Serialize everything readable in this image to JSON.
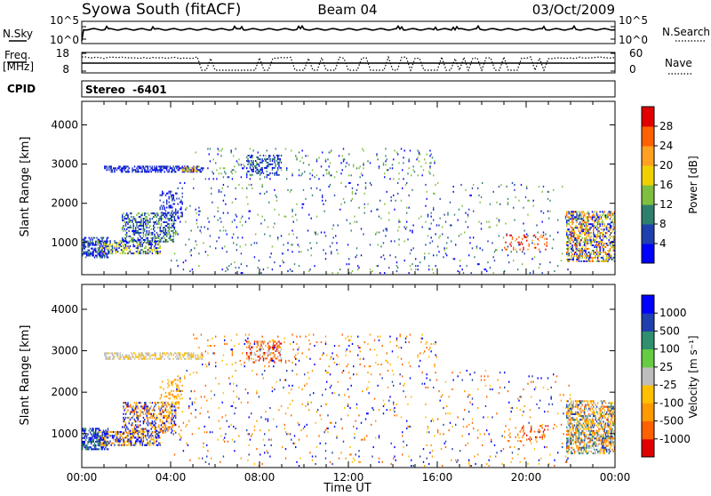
{
  "header": {
    "station": "Syowa South (fitACF)",
    "beam": "Beam 04",
    "date": "03/Oct/2009"
  },
  "top_panels": {
    "nsky_label": "N.Sky",
    "nsky_ticks": [
      "10^5",
      "10^0"
    ],
    "nsearch_label": "N.Search",
    "nsearch_ticks": [
      "10^5",
      "10^0"
    ],
    "freq_label": "Freq.",
    "freq_unit": "[MHz]",
    "freq_ticks": [
      "18",
      "8"
    ],
    "nave_label": "Nave",
    "nave_ticks": [
      "60",
      "0"
    ],
    "cpid_label": "CPID",
    "stereo_label": "Stereo  -6401"
  },
  "colors": {
    "line": "#000000",
    "background": "#ffffff"
  },
  "chart_data": [
    {
      "type": "heatmap",
      "title": "",
      "xlabel": "",
      "ylabel": "Slant Range [km]",
      "xlim": [
        0,
        24
      ],
      "ylim": [
        180,
        4600
      ],
      "yticks": [
        1000,
        2000,
        3000,
        4000
      ],
      "colorbar": {
        "label": "Power [dB]",
        "ticks": [
          "28",
          "24",
          "20",
          "16",
          "12",
          "8",
          "4"
        ],
        "colors": [
          "#0000ff",
          "#1f3faf",
          "#2f7f6f",
          "#7fbf3f",
          "#f0d000",
          "#ffa020",
          "#ff6000",
          "#e00000"
        ]
      },
      "bands": [
        {
          "t0": 1.0,
          "t1": 5.4,
          "r0": 2780,
          "r1": 2950,
          "density": 0.55,
          "levels": [
            0,
            1
          ]
        },
        {
          "t0": 4.5,
          "t1": 5.2,
          "r0": 2800,
          "r1": 2900,
          "density": 0.5,
          "levels": [
            3,
            4,
            5
          ]
        },
        {
          "t0": 7.4,
          "t1": 9.0,
          "r0": 2700,
          "r1": 3200,
          "density": 0.35,
          "levels": [
            0,
            1,
            2
          ]
        },
        {
          "t0": 5.0,
          "t1": 16.0,
          "r0": 2600,
          "r1": 3400,
          "density": 0.06,
          "levels": [
            2,
            3,
            0
          ]
        },
        {
          "t0": 0.0,
          "t1": 1.2,
          "r0": 600,
          "r1": 1100,
          "density": 0.6,
          "levels": [
            0,
            1,
            2
          ]
        },
        {
          "t0": 0.7,
          "t1": 3.5,
          "r0": 700,
          "r1": 1050,
          "density": 0.5,
          "levels": [
            0,
            1,
            3,
            4
          ]
        },
        {
          "t0": 1.8,
          "t1": 4.2,
          "r0": 1000,
          "r1": 1750,
          "density": 0.45,
          "levels": [
            0,
            1,
            2,
            3
          ]
        },
        {
          "t0": 3.5,
          "t1": 4.5,
          "r0": 1600,
          "r1": 2300,
          "density": 0.25,
          "levels": [
            0,
            1
          ]
        },
        {
          "t0": 4.0,
          "t1": 22.0,
          "r0": 200,
          "r1": 2500,
          "density": 0.035,
          "levels": [
            1,
            2,
            3,
            0
          ]
        },
        {
          "t0": 19.0,
          "t1": 21.0,
          "r0": 800,
          "r1": 1200,
          "density": 0.15,
          "levels": [
            5,
            6,
            7
          ]
        },
        {
          "t0": 21.8,
          "t1": 24.0,
          "r0": 500,
          "r1": 1800,
          "density": 0.55,
          "levels": [
            0,
            1,
            3,
            4,
            5,
            6
          ]
        }
      ]
    },
    {
      "type": "heatmap",
      "title": "",
      "xlabel": "Time UT",
      "ylabel": "Slant Range [km]",
      "xlim": [
        0,
        24
      ],
      "ylim": [
        180,
        4600
      ],
      "yticks": [
        1000,
        2000,
        3000,
        4000
      ],
      "xticks": [
        "00:00",
        "04:00",
        "08:00",
        "12:00",
        "16:00",
        "20:00",
        "00:00"
      ],
      "colorbar": {
        "label": "Velocity [m s⁻¹]",
        "ticks": [
          "1000",
          "500",
          "100",
          "25",
          "-25",
          "-100",
          "-500",
          "-1000"
        ],
        "colors": [
          "#e00000",
          "#ff6000",
          "#ff9900",
          "#ffc000",
          "#bdbdbd",
          "#66cc44",
          "#2f8f6f",
          "#1f3faf",
          "#0000ff"
        ]
      },
      "bands": [
        {
          "t0": 1.0,
          "t1": 5.4,
          "r0": 2780,
          "r1": 2950,
          "density": 0.5,
          "levels": [
            4,
            4,
            3
          ]
        },
        {
          "t0": 7.4,
          "t1": 9.0,
          "r0": 2700,
          "r1": 3200,
          "density": 0.35,
          "levels": [
            4,
            2,
            0,
            1
          ]
        },
        {
          "t0": 5.0,
          "t1": 16.0,
          "r0": 2600,
          "r1": 3400,
          "density": 0.06,
          "levels": [
            2,
            3,
            8,
            1
          ]
        },
        {
          "t0": 0.0,
          "t1": 1.2,
          "r0": 600,
          "r1": 1100,
          "density": 0.55,
          "levels": [
            8,
            7,
            6
          ]
        },
        {
          "t0": 0.7,
          "t1": 3.5,
          "r0": 700,
          "r1": 1050,
          "density": 0.5,
          "levels": [
            2,
            3,
            7,
            8
          ]
        },
        {
          "t0": 1.8,
          "t1": 4.2,
          "r0": 1000,
          "r1": 1750,
          "density": 0.45,
          "levels": [
            1,
            2,
            3,
            7,
            8
          ]
        },
        {
          "t0": 3.5,
          "t1": 4.5,
          "r0": 1600,
          "r1": 2300,
          "density": 0.25,
          "levels": [
            2,
            3
          ]
        },
        {
          "t0": 4.0,
          "t1": 22.0,
          "r0": 200,
          "r1": 2500,
          "density": 0.035,
          "levels": [
            1,
            2,
            3,
            8,
            7
          ]
        },
        {
          "t0": 19.0,
          "t1": 21.0,
          "r0": 800,
          "r1": 1200,
          "density": 0.15,
          "levels": [
            0,
            1,
            2
          ]
        },
        {
          "t0": 21.8,
          "t1": 24.0,
          "r0": 500,
          "r1": 1800,
          "density": 0.55,
          "levels": [
            1,
            2,
            3,
            4,
            6,
            7
          ]
        }
      ]
    }
  ]
}
